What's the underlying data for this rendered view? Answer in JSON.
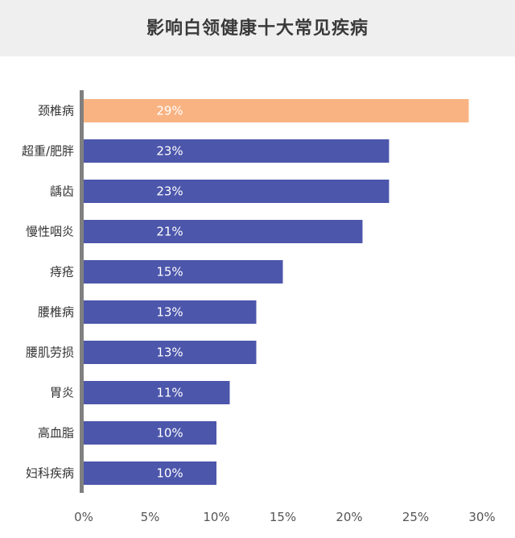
{
  "title": "影响白领健康十大常见疾病",
  "chart_data": {
    "type": "bar",
    "orientation": "horizontal",
    "categories": [
      "颈椎病",
      "超重/肥胖",
      "龋齿",
      "慢性咽炎",
      "痔疮",
      "腰椎病",
      "腰肌劳损",
      "胃炎",
      "高血脂",
      "妇科疾病"
    ],
    "values": [
      29,
      23,
      23,
      21,
      15,
      13,
      13,
      11,
      10,
      10
    ],
    "value_labels": [
      "29%",
      "23%",
      "23%",
      "21%",
      "15%",
      "13%",
      "13%",
      "11%",
      "10%",
      "10%"
    ],
    "x_ticks": [
      0,
      5,
      10,
      15,
      20,
      25,
      30
    ],
    "x_tick_labels": [
      "0%",
      "5%",
      "10%",
      "15%",
      "20%",
      "25%",
      "30%"
    ],
    "xlim": [
      0,
      30
    ],
    "grid": false,
    "colors": {
      "highlight": "#f9b382",
      "bar": "#4c56ab",
      "axis": "#808080",
      "title_band": "#efefef"
    }
  }
}
